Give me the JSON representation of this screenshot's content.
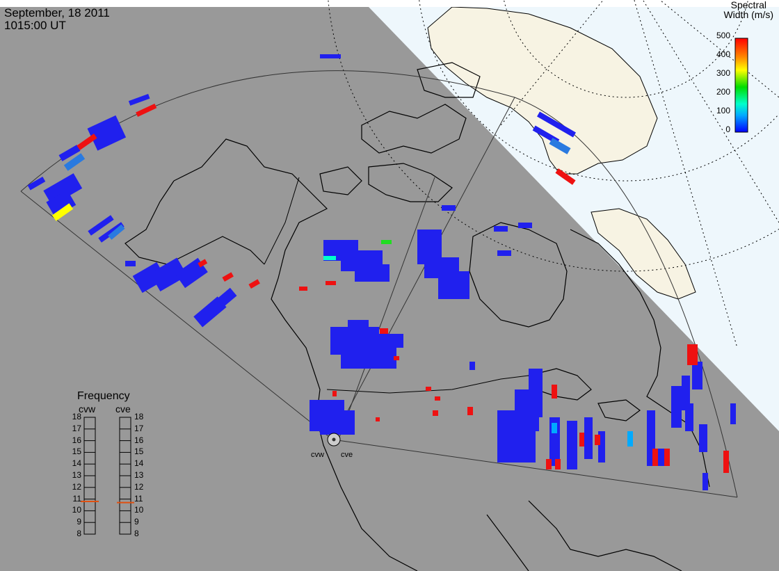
{
  "header": {
    "date": "September, 18 2011",
    "time": "1015:00 UT"
  },
  "colorbar": {
    "title_line1": "Spectral",
    "title_line2": "Width (m/s)",
    "ticks": [
      "500",
      "400",
      "300",
      "200",
      "100",
      "0"
    ],
    "colors": [
      "#0000ff",
      "#00aaff",
      "#00ffcc",
      "#00dd00",
      "#ffff00",
      "#ff8800",
      "#ff0000"
    ]
  },
  "frequency_panel": {
    "title": "Frequency",
    "radars": [
      "cvw",
      "cve"
    ],
    "ticks": [
      "18",
      "17",
      "16",
      "15",
      "14",
      "13",
      "12",
      "11",
      "10",
      "9",
      "8"
    ],
    "current_mhz": [
      10.8,
      10.7
    ]
  },
  "sites": [
    "cvw",
    "cve"
  ],
  "colors": {
    "night_shade": "#999999",
    "ocean_day": "#eef7fc",
    "land_day": "#f7f3e3",
    "scatter_low": "#2020ee",
    "scatter_high": "#ee1111"
  }
}
